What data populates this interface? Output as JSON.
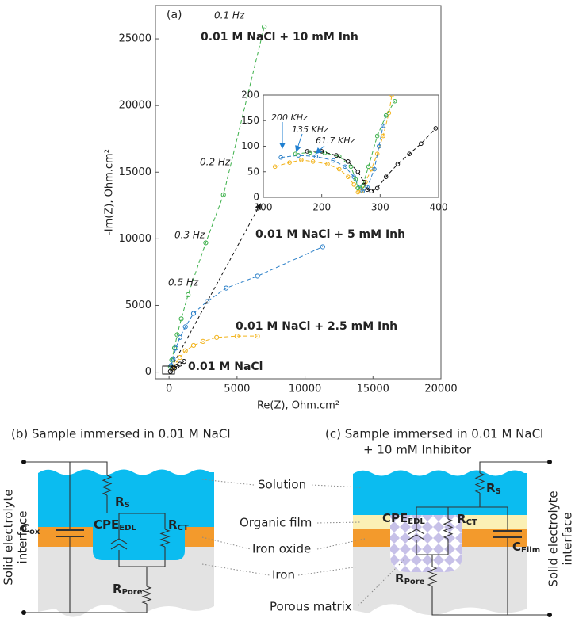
{
  "panel_label": "(a)",
  "chart_data": [
    {
      "type": "line",
      "x_label": "Re(Z), Ohm.cm²",
      "y_label": "-Im(Z), Ohm.cm²",
      "xlim": [
        -1000,
        20000
      ],
      "ylim": [
        -500,
        27500
      ],
      "xticks": [
        0,
        5000,
        10000,
        15000,
        20000
      ],
      "yticks": [
        0,
        5000,
        10000,
        15000,
        20000,
        25000
      ],
      "series": [
        {
          "name": "0.01 M NaCl + 10 mM Inh",
          "color": "#3cb04a",
          "x": [
            100,
            200,
            400,
            600,
            900,
            1400,
            2700,
            4000,
            7000
          ],
          "values": [
            400,
            900,
            1800,
            2800,
            4000,
            5800,
            9700,
            13300,
            25900
          ]
        },
        {
          "name": "0.01 M NaCl + 5 mM Inh",
          "color": "#2a7fc8",
          "x": [
            150,
            300,
            500,
            800,
            1200,
            1800,
            2800,
            4200,
            6500,
            11300
          ],
          "values": [
            500,
            1000,
            1800,
            2600,
            3400,
            4400,
            5300,
            6300,
            7200,
            9400
          ]
        },
        {
          "name": "0.01 M NaCl + 2.5 mM Inh",
          "color": "#f2b31b",
          "x": [
            300,
            500,
            800,
            1200,
            1800,
            2500,
            3500,
            5000,
            6500
          ],
          "values": [
            300,
            700,
            1100,
            1600,
            2000,
            2300,
            2600,
            2700,
            2700
          ]
        },
        {
          "name": "0.01 M NaCl",
          "color": "#111111",
          "x": [
            100,
            250,
            400,
            600,
            800,
            1100
          ],
          "values": [
            50,
            150,
            300,
            450,
            600,
            800
          ]
        }
      ],
      "annotations": [
        "0.1 Hz",
        "0.2 Hz",
        "0.3 Hz",
        "0.5 Hz"
      ],
      "annotation_color": "#4f962c"
    },
    {
      "type": "line",
      "xlim": [
        100,
        400
      ],
      "ylim": [
        0,
        200
      ],
      "xticks": [
        100,
        200,
        300,
        400
      ],
      "yticks": [
        0,
        50,
        100,
        150,
        200
      ],
      "series": [
        {
          "color": "#f2b31b",
          "x": [
            120,
            145,
            165,
            185,
            210,
            230,
            245,
            255,
            262,
            268,
            275,
            285,
            295,
            305,
            315,
            320
          ],
          "values": [
            60,
            68,
            73,
            70,
            65,
            55,
            40,
            25,
            10,
            12,
            30,
            55,
            85,
            120,
            165,
            200
          ]
        },
        {
          "color": "#2a7fc8",
          "x": [
            130,
            160,
            190,
            220,
            240,
            255,
            265,
            270,
            278,
            290,
            298,
            305,
            310
          ],
          "values": [
            78,
            82,
            80,
            72,
            60,
            40,
            20,
            12,
            20,
            55,
            100,
            140,
            160
          ]
        },
        {
          "color": "#3cb04a",
          "x": [
            155,
            180,
            205,
            230,
            250,
            258,
            262,
            270,
            280,
            295,
            310,
            325
          ],
          "values": [
            85,
            88,
            87,
            80,
            60,
            35,
            18,
            22,
            60,
            120,
            160,
            188
          ]
        },
        {
          "color": "#111111",
          "x": [
            175,
            200,
            225,
            245,
            262,
            272,
            278,
            285,
            295,
            310,
            330,
            350,
            370,
            395
          ],
          "values": [
            90,
            90,
            82,
            70,
            50,
            30,
            15,
            12,
            18,
            40,
            65,
            85,
            105,
            135
          ]
        }
      ],
      "annotations": [
        "200 KHz",
        "135 KHz",
        "61.7 KHz"
      ],
      "annotation_color": "#1f7fd0"
    }
  ],
  "diagrams": [
    {
      "title": [
        "(b) Sample immersed  in 0.01 M NaCl"
      ],
      "side_label": [
        "Solid electrolyte",
        "interface"
      ],
      "components": [
        {
          "main": "R",
          "sub": "S"
        },
        {
          "main": "C",
          "sub": "ox"
        },
        {
          "main": "CPE",
          "sub": "EDL"
        },
        {
          "main": "R",
          "sub": "CT"
        },
        {
          "main": "R",
          "sub": "Pore"
        }
      ]
    },
    {
      "title": [
        "(c) Sample immersed  in 0.01 M NaCl",
        "+ 10 mM Inhibitor"
      ],
      "side_label": [
        "Solid electrolyte",
        "interface"
      ],
      "components": [
        {
          "main": "R",
          "sub": "S"
        },
        {
          "main": "CPE",
          "sub": "EDL"
        },
        {
          "main": "R",
          "sub": "CT"
        },
        {
          "main": "C",
          "sub": "Film"
        },
        {
          "main": "R",
          "sub": "Pore"
        }
      ]
    }
  ],
  "layer_labels": [
    "Solution",
    "Organic film",
    "Iron oxide",
    "Iron",
    "Porous matrix"
  ]
}
